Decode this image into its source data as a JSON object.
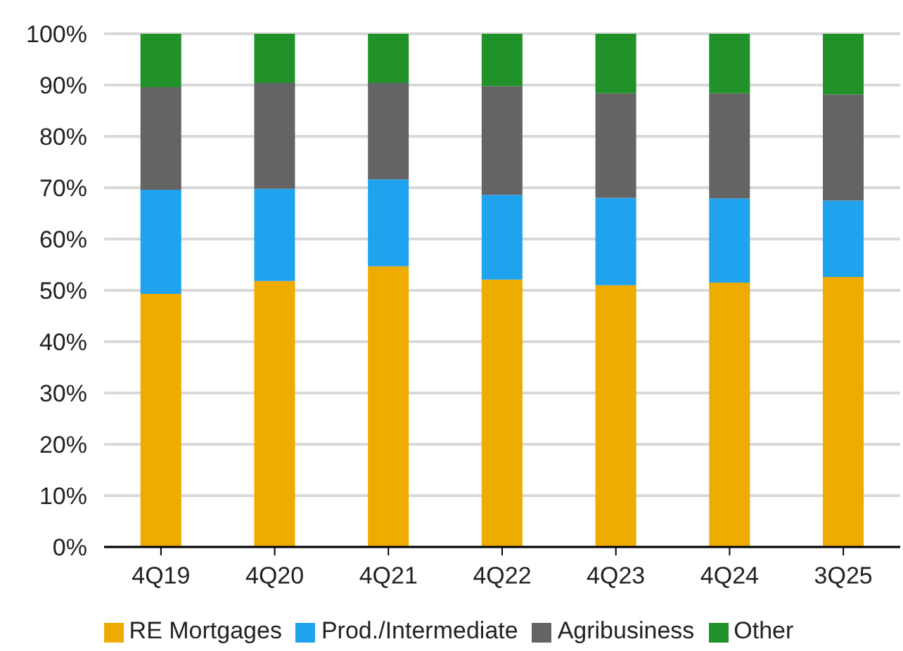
{
  "chart_data": {
    "type": "bar",
    "stacked": true,
    "categories": [
      "4Q19",
      "4Q20",
      "4Q21",
      "4Q22",
      "4Q23",
      "4Q24",
      "3Q25"
    ],
    "series": [
      {
        "name": "RE Mortgages",
        "color": "#eeab00",
        "values": [
          49.3,
          51.8,
          54.7,
          52.1,
          51.0,
          51.5,
          52.6
        ]
      },
      {
        "name": "Prod./Intermediate",
        "color": "#1fa3ee",
        "values": [
          20.3,
          18.0,
          16.9,
          16.5,
          17.0,
          16.4,
          14.9
        ]
      },
      {
        "name": "Agribusiness",
        "color": "#646464",
        "values": [
          20.0,
          20.6,
          18.8,
          21.2,
          20.4,
          20.5,
          20.7
        ]
      },
      {
        "name": "Other",
        "color": "#219129",
        "values": [
          10.4,
          9.6,
          9.6,
          10.2,
          11.6,
          11.6,
          11.8
        ]
      }
    ],
    "ylim": [
      0,
      100
    ],
    "yticks": [
      {
        "value": 0,
        "label": "0%"
      },
      {
        "value": 10,
        "label": "10%"
      },
      {
        "value": 20,
        "label": "20%"
      },
      {
        "value": 30,
        "label": "30%"
      },
      {
        "value": 40,
        "label": "40%"
      },
      {
        "value": 50,
        "label": "50%"
      },
      {
        "value": 60,
        "label": "60%"
      },
      {
        "value": 70,
        "label": "70%"
      },
      {
        "value": 80,
        "label": "80%"
      },
      {
        "value": 90,
        "label": "90%"
      },
      {
        "value": 100,
        "label": "100%"
      }
    ],
    "grid": "y",
    "legend": "bottom"
  }
}
